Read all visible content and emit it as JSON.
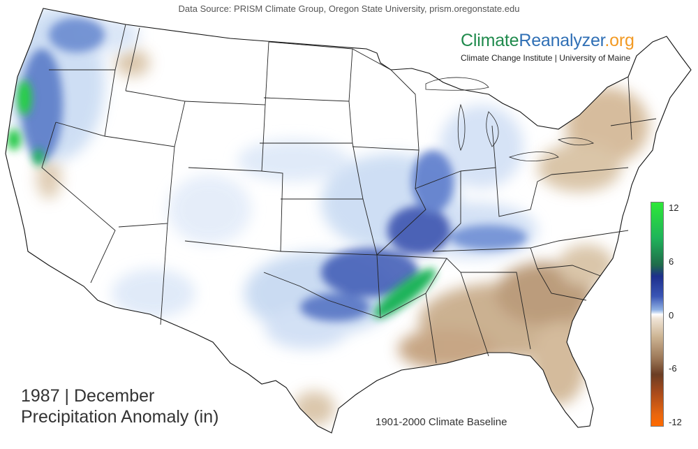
{
  "header": {
    "source": "Data Source: PRISM Climate Group, Oregon State University, prism.oregonstate.edu"
  },
  "brand": {
    "part1": "Climate",
    "part2": "Reanalyzer",
    "part3": ".org",
    "subtitle": "Climate Change Institute | University of Maine",
    "colors": {
      "climate": "#1f8a4c",
      "reanalyzer": "#2f6fb5",
      "org": "#f29a24"
    }
  },
  "title": {
    "line1": "1987 | December",
    "line2": "Precipitation Anomaly (in)"
  },
  "baseline": "1901-2000 Climate Baseline",
  "legend": {
    "ticks": [
      "12",
      "6",
      "0",
      "-6",
      "-12"
    ],
    "colors": {
      "max": "#2ee838",
      "high": "#1d2f8c",
      "zero": "#ffffff",
      "low": "#6b3d24",
      "min": "#ff6a00"
    }
  },
  "map": {
    "region": "contiguous-united-states",
    "wet_anomaly_regions": [
      "pacific-northwest",
      "northern-california",
      "ozarks-mississippi-valley",
      "ohio-valley",
      "great-lakes"
    ],
    "dry_anomaly_regions": [
      "southeast",
      "gulf-coast",
      "northeast",
      "south-texas"
    ]
  }
}
